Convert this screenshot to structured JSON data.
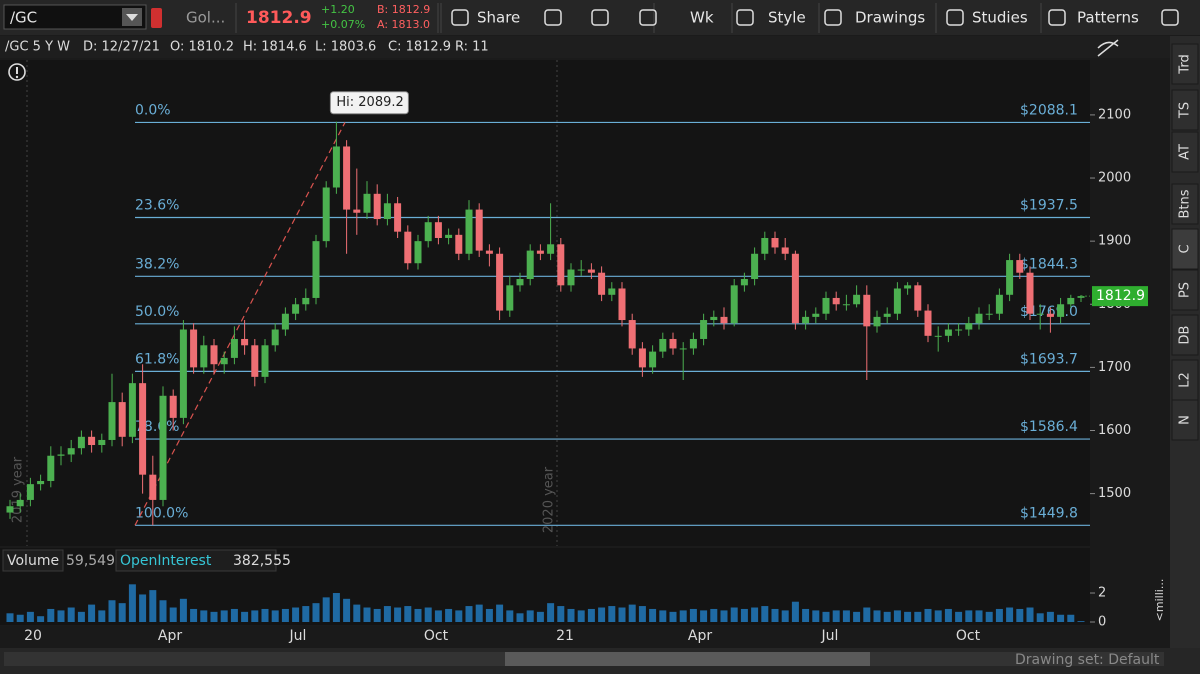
{
  "toolbar": {
    "symbol": "/GC",
    "name": "Gol...",
    "last": "1812.9",
    "change": "+1.20",
    "change_pct": "+0.07%",
    "bid": "B: 1812.9",
    "ask": "A: 1813.0",
    "buttons": [
      "Share",
      "Wk",
      "Style",
      "Drawings",
      "Studies",
      "Patterns"
    ]
  },
  "info": [
    "/GC 5 Y W",
    "D: 12/27/21",
    "O: 1810.2",
    "H: 1814.6",
    "L: 1803.6",
    "C: 1812.9",
    "R: 11"
  ],
  "sidebar": [
    "Trd",
    "TS",
    "AT",
    "Btns",
    "C",
    "PS",
    "DB",
    "L2",
    "N"
  ],
  "volume_header": {
    "volume": "Volume",
    "volume_value": "59,549",
    "oi": "OpenInterest",
    "oi_value": "382,555"
  },
  "volume_axis_label": "<milli...",
  "footer": "Drawing set: Default",
  "chart_data": {
    "type": "candlestick",
    "open": [
      1470,
      1480,
      1490,
      1515,
      1520,
      1560,
      1562,
      1572,
      1590,
      1577,
      1585,
      1645,
      1590,
      1675,
      1530,
      1490,
      1655,
      1620,
      1760,
      1700,
      1735,
      1705,
      1715,
      1745,
      1735,
      1685,
      1735,
      1760,
      1785,
      1800,
      1810,
      1900,
      1985,
      2050,
      1950,
      1945,
      1975,
      1935,
      1960,
      1915,
      1865,
      1900,
      1930,
      1905,
      1910,
      1880,
      1950,
      1885,
      1880,
      1790,
      1830,
      1840,
      1885,
      1880,
      1895,
      1830,
      1855,
      1855,
      1850,
      1815,
      1825,
      1775,
      1730,
      1700,
      1725,
      1745,
      1730,
      1730,
      1745,
      1775,
      1780,
      1770,
      1830,
      1840,
      1880,
      1905,
      1890,
      1880,
      1770,
      1780,
      1785,
      1810,
      1800,
      1800,
      1815,
      1765,
      1780,
      1785,
      1825,
      1830,
      1790,
      1750,
      1750,
      1760,
      1760,
      1770,
      1785,
      1785,
      1815,
      1870,
      1850,
      1785,
      1785,
      1780,
      1800,
      1810.2
    ],
    "high": [
      1490,
      1500,
      1525,
      1530,
      1575,
      1575,
      1585,
      1600,
      1600,
      1595,
      1690,
      1660,
      1690,
      1705,
      1560,
      1670,
      1665,
      1775,
      1770,
      1750,
      1745,
      1725,
      1765,
      1775,
      1745,
      1745,
      1770,
      1795,
      1810,
      1825,
      1910,
      1995,
      2089.2,
      2060,
      2015,
      1995,
      1990,
      1975,
      1970,
      1925,
      1910,
      1940,
      1940,
      1920,
      1920,
      1965,
      1960,
      1895,
      1890,
      1845,
      1850,
      1895,
      1895,
      1960,
      1905,
      1865,
      1870,
      1865,
      1860,
      1835,
      1835,
      1785,
      1740,
      1735,
      1755,
      1755,
      1740,
      1755,
      1785,
      1790,
      1795,
      1840,
      1850,
      1890,
      1915,
      1915,
      1905,
      1885,
      1790,
      1795,
      1820,
      1820,
      1815,
      1830,
      1830,
      1790,
      1795,
      1835,
      1835,
      1835,
      1800,
      1765,
      1770,
      1770,
      1780,
      1795,
      1800,
      1825,
      1880,
      1880,
      1860,
      1800,
      1795,
      1810,
      1815,
      1814.6
    ],
    "low": [
      1460,
      1470,
      1480,
      1505,
      1510,
      1545,
      1550,
      1562,
      1565,
      1565,
      1575,
      1575,
      1580,
      1500,
      1449.8,
      1480,
      1600,
      1610,
      1690,
      1690,
      1690,
      1690,
      1705,
      1720,
      1670,
      1675,
      1725,
      1750,
      1775,
      1790,
      1800,
      1890,
      1975,
      1880,
      1910,
      1935,
      1925,
      1925,
      1905,
      1855,
      1855,
      1890,
      1895,
      1895,
      1870,
      1870,
      1875,
      1860,
      1775,
      1780,
      1820,
      1830,
      1870,
      1870,
      1820,
      1820,
      1845,
      1840,
      1805,
      1805,
      1765,
      1720,
      1685,
      1690,
      1715,
      1720,
      1680,
      1720,
      1735,
      1765,
      1760,
      1765,
      1820,
      1830,
      1870,
      1880,
      1870,
      1760,
      1760,
      1770,
      1775,
      1790,
      1790,
      1795,
      1680,
      1755,
      1770,
      1775,
      1815,
      1780,
      1740,
      1725,
      1740,
      1750,
      1750,
      1760,
      1775,
      1775,
      1805,
      1840,
      1775,
      1760,
      1755,
      1770,
      1795,
      1803.6
    ],
    "close": [
      1480,
      1490,
      1515,
      1520,
      1560,
      1562,
      1572,
      1590,
      1577,
      1585,
      1645,
      1590,
      1675,
      1530,
      1490,
      1655,
      1620,
      1760,
      1700,
      1735,
      1705,
      1715,
      1745,
      1735,
      1685,
      1735,
      1760,
      1785,
      1800,
      1810,
      1900,
      1985,
      2050,
      1950,
      1945,
      1975,
      1935,
      1960,
      1915,
      1865,
      1900,
      1930,
      1905,
      1910,
      1880,
      1950,
      1885,
      1880,
      1790,
      1830,
      1840,
      1885,
      1880,
      1895,
      1830,
      1855,
      1855,
      1850,
      1815,
      1825,
      1775,
      1730,
      1700,
      1725,
      1745,
      1730,
      1730,
      1745,
      1775,
      1780,
      1770,
      1830,
      1840,
      1880,
      1905,
      1890,
      1880,
      1770,
      1780,
      1785,
      1810,
      1800,
      1800,
      1815,
      1765,
      1780,
      1785,
      1825,
      1830,
      1790,
      1750,
      1750,
      1760,
      1760,
      1770,
      1785,
      1785,
      1815,
      1870,
      1850,
      1785,
      1785,
      1780,
      1800,
      1810,
      1812.9
    ],
    "volume": [
      0.6,
      0.5,
      0.7,
      0.4,
      0.9,
      0.8,
      1.0,
      0.7,
      1.2,
      0.8,
      1.5,
      1.3,
      2.6,
      1.9,
      2.2,
      1.5,
      1.0,
      1.6,
      0.9,
      0.8,
      0.7,
      0.8,
      0.9,
      0.7,
      0.8,
      0.9,
      0.8,
      0.9,
      1.0,
      1.1,
      1.3,
      1.7,
      2.0,
      1.6,
      1.2,
      1.0,
      0.9,
      1.1,
      1.0,
      1.1,
      0.9,
      1.0,
      0.8,
      0.9,
      0.8,
      1.1,
      1.2,
      0.9,
      1.2,
      0.8,
      0.6,
      0.8,
      0.7,
      1.3,
      1.1,
      0.9,
      0.8,
      0.9,
      1.0,
      1.1,
      1.0,
      1.2,
      1.1,
      0.9,
      0.8,
      0.7,
      0.8,
      0.9,
      0.8,
      0.9,
      0.8,
      1.0,
      0.9,
      1.0,
      1.1,
      0.9,
      0.8,
      1.4,
      0.9,
      0.8,
      0.7,
      0.8,
      0.8,
      0.7,
      1.0,
      0.8,
      0.7,
      0.8,
      0.7,
      0.7,
      0.9,
      0.8,
      0.9,
      0.7,
      0.8,
      0.8,
      0.7,
      0.9,
      1.0,
      0.9,
      1.0,
      0.6,
      0.7,
      0.5,
      0.5,
      0.06
    ],
    "up_color": "#4cb050",
    "down_color": "#ef6f74",
    "volume_color": "#1f6aa3",
    "ylim": [
      1417,
      2187
    ],
    "yticks": [
      1500,
      1600,
      1700,
      1800,
      1900,
      2000,
      2100
    ],
    "volume_ylim": [
      0,
      3.45
    ],
    "volume_yticks": [
      0,
      2
    ],
    "xlabels": [
      "20",
      "Apr",
      "Jul",
      "Oct",
      "21",
      "Apr",
      "Jul",
      "Oct"
    ],
    "year_labels": [
      "2019 year",
      "2020 year"
    ],
    "fib": [
      {
        "level": "0.0%",
        "price": {
          "value": 2088.1,
          "label": "$2088.1"
        }
      },
      {
        "level": "23.6%",
        "price": {
          "value": 1937.5,
          "label": "$1937.5"
        }
      },
      {
        "level": "38.2%",
        "price": {
          "value": 1844.3,
          "label": "$1844.3"
        }
      },
      {
        "level": "50.0%",
        "price": {
          "value": 1769.0,
          "label": "$1769.0"
        }
      },
      {
        "level": "61.8%",
        "price": {
          "value": 1693.7,
          "label": "$1693.7"
        }
      },
      {
        "level": "78.6%",
        "price": {
          "value": 1586.4,
          "label": "$1586.4"
        }
      },
      {
        "level": "100.0%",
        "price": {
          "value": 1449.8,
          "label": "$1449.8"
        }
      }
    ],
    "fib_color": "#6aaed6",
    "hi_label": "Hi: 2089.2",
    "last_price": 1812.9
  }
}
